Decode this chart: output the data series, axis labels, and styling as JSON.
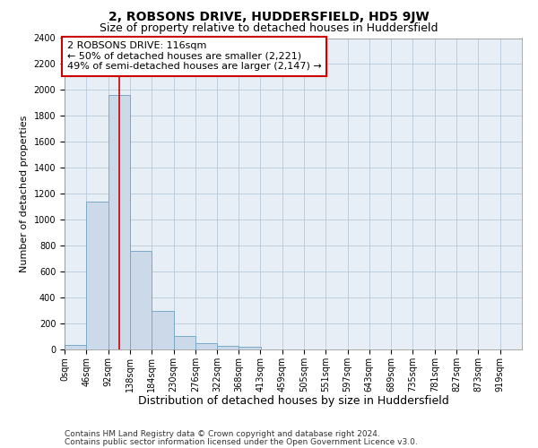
{
  "title": "2, ROBSONS DRIVE, HUDDERSFIELD, HD5 9JW",
  "subtitle": "Size of property relative to detached houses in Huddersfield",
  "xlabel": "Distribution of detached houses by size in Huddersfield",
  "ylabel": "Number of detached properties",
  "bin_edges": [
    0,
    46,
    92,
    138,
    184,
    230,
    276,
    322,
    368,
    413,
    459,
    505,
    551,
    597,
    643,
    689,
    735,
    781,
    827,
    873,
    919
  ],
  "bar_heights": [
    35,
    1140,
    1960,
    760,
    300,
    105,
    50,
    30,
    20,
    0,
    0,
    0,
    0,
    0,
    0,
    0,
    0,
    0,
    0,
    0
  ],
  "bar_facecolor": "#ccd9e8",
  "bar_edgecolor": "#7aaac8",
  "vline_x": 116,
  "vline_color": "#cc0000",
  "ylim": [
    0,
    2400
  ],
  "yticks": [
    0,
    200,
    400,
    600,
    800,
    1000,
    1200,
    1400,
    1600,
    1800,
    2000,
    2200,
    2400
  ],
  "annotation_line1": "2 ROBSONS DRIVE: 116sqm",
  "annotation_line2": "← 50% of detached houses are smaller (2,221)",
  "annotation_line3": "49% of semi-detached houses are larger (2,147) →",
  "annotation_box_color": "#cc0000",
  "footer_line1": "Contains HM Land Registry data © Crown copyright and database right 2024.",
  "footer_line2": "Contains public sector information licensed under the Open Government Licence v3.0.",
  "bg_color": "#e8eef5",
  "grid_color": "#b8c8d8",
  "title_fontsize": 10,
  "subtitle_fontsize": 9,
  "xlabel_fontsize": 9,
  "ylabel_fontsize": 8,
  "tick_fontsize": 7,
  "annotation_fontsize": 8,
  "footer_fontsize": 6.5
}
